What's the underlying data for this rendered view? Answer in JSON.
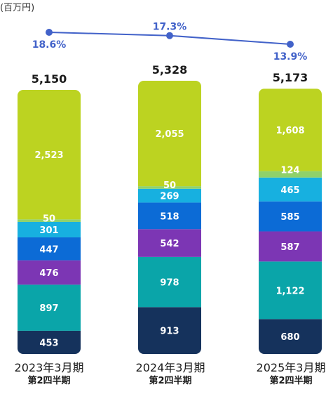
{
  "unit_label": "(百万円)",
  "chart_data": {
    "type": "bar",
    "stacked": true,
    "categories": [
      {
        "line1": "2023年3月期",
        "line2": "第2四半期"
      },
      {
        "line1": "2024年3月期",
        "line2": "第2四半期"
      },
      {
        "line1": "2025年3月期",
        "line2": "第2四半期"
      }
    ],
    "totals": [
      "5,150",
      "5,328",
      "5,173"
    ],
    "series": [
      {
        "color": "#15325c",
        "values": [
          453,
          913,
          680
        ],
        "labels": [
          "453",
          "913",
          "680"
        ]
      },
      {
        "color": "#0aa5a9",
        "values": [
          897,
          978,
          1122
        ],
        "labels": [
          "897",
          "978",
          "1,122"
        ]
      },
      {
        "color": "#7c36b4",
        "values": [
          476,
          542,
          587
        ],
        "labels": [
          "476",
          "542",
          "587"
        ]
      },
      {
        "color": "#0c6bd6",
        "values": [
          447,
          518,
          585
        ],
        "labels": [
          "447",
          "518",
          "585"
        ]
      },
      {
        "color": "#17b0e0",
        "values": [
          301,
          269,
          465
        ],
        "labels": [
          "301",
          "269",
          "465"
        ]
      },
      {
        "color": "#8fd16a",
        "values": [
          50,
          50,
          124
        ],
        "labels": [
          "50",
          "50",
          "124"
        ]
      },
      {
        "color": "#bcd321",
        "values": [
          2523,
          2055,
          1608
        ],
        "labels": [
          "2,523",
          "2,055",
          "1,608"
        ]
      }
    ],
    "line": {
      "color": "#4262c9",
      "values": [
        18.6,
        17.3,
        13.9
      ],
      "labels": [
        "18.6%",
        "17.3%",
        "13.9%"
      ]
    }
  }
}
